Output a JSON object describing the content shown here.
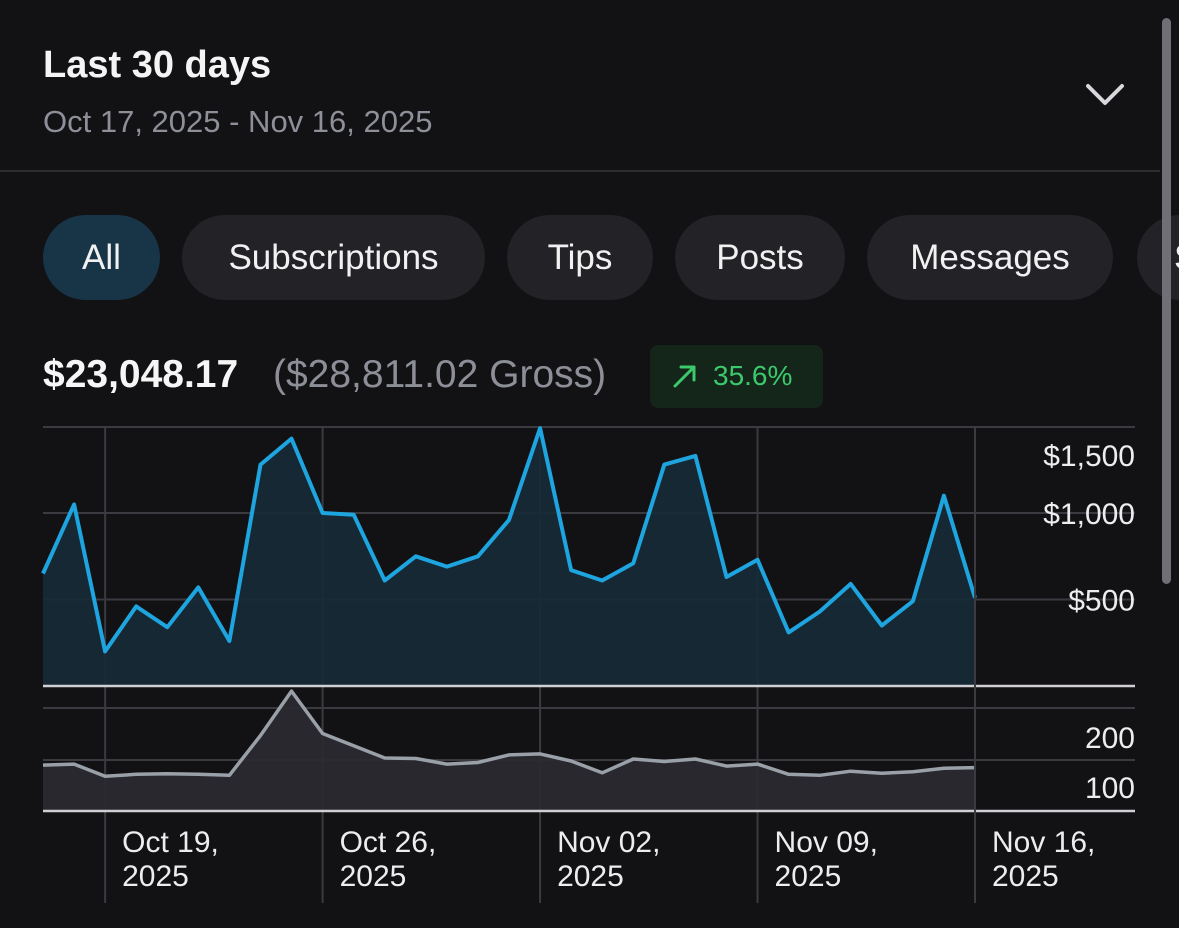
{
  "header": {
    "title": "Last 30 days",
    "date_range": "Oct 17, 2025 - Nov 16, 2025",
    "dropdown_icon": "chevron-down-icon"
  },
  "filters": {
    "tabs": [
      {
        "label": "All",
        "active": true
      },
      {
        "label": "Subscriptions",
        "active": false
      },
      {
        "label": "Tips",
        "active": false
      },
      {
        "label": "Posts",
        "active": false
      },
      {
        "label": "Messages",
        "active": false
      },
      {
        "label": "S",
        "active": false
      }
    ]
  },
  "summary": {
    "net_amount": "$23,048.17",
    "gross_text": "($28,811.02 Gross)",
    "change_icon": "arrow-up-right-icon",
    "change": "35.6%",
    "change_color": "#3cc96b"
  },
  "colors": {
    "background": "#121114",
    "accent_line": "#1ea4de",
    "active_tab": "#183447",
    "secondary_line": "#9aa0a8"
  },
  "chart_data": [
    {
      "type": "area",
      "series": [
        {
          "values": [
            650,
            1050,
            200,
            460,
            340,
            570,
            260,
            1280,
            1430,
            1000,
            990,
            610,
            750,
            690,
            750,
            960,
            1490,
            670,
            610,
            710,
            1280,
            1330,
            630,
            730,
            310,
            430,
            590,
            350,
            490,
            1100,
            510
          ]
        }
      ],
      "x": [
        "Oct 17",
        "Oct 18",
        "Oct 19",
        "Oct 20",
        "Oct 21",
        "Oct 22",
        "Oct 23",
        "Oct 24",
        "Oct 25",
        "Oct 26",
        "Oct 27",
        "Oct 28",
        "Oct 29",
        "Oct 30",
        "Oct 31",
        "Nov 01",
        "Nov 02",
        "Nov 03",
        "Nov 04",
        "Nov 05",
        "Nov 06",
        "Nov 07",
        "Nov 08",
        "Nov 09",
        "Nov 10",
        "Nov 11",
        "Nov 12",
        "Nov 13",
        "Nov 14",
        "Nov 15",
        "Nov 16"
      ],
      "y_ticks": [
        "$500",
        "$1,000",
        "$1,500"
      ],
      "ylim": [
        0,
        1500
      ],
      "grid": true,
      "y_axis_position": "right"
    },
    {
      "type": "area",
      "series": [
        {
          "values": [
            90,
            92,
            68,
            72,
            73,
            72,
            70,
            148,
            235,
            152,
            128,
            104,
            103,
            92,
            95,
            110,
            112,
            98,
            75,
            102,
            97,
            102,
            88,
            92,
            72,
            70,
            78,
            74,
            77,
            84,
            85
          ]
        }
      ],
      "x": [
        "Oct 17",
        "Oct 18",
        "Oct 19",
        "Oct 20",
        "Oct 21",
        "Oct 22",
        "Oct 23",
        "Oct 24",
        "Oct 25",
        "Oct 26",
        "Oct 27",
        "Oct 28",
        "Oct 29",
        "Oct 30",
        "Oct 31",
        "Nov 01",
        "Nov 02",
        "Nov 03",
        "Nov 04",
        "Nov 05",
        "Nov 06",
        "Nov 07",
        "Nov 08",
        "Nov 09",
        "Nov 10",
        "Nov 11",
        "Nov 12",
        "Nov 13",
        "Nov 14",
        "Nov 15",
        "Nov 16"
      ],
      "y_ticks": [
        "100",
        "200"
      ],
      "ylim": [
        0,
        200
      ],
      "grid": true,
      "y_axis_position": "right",
      "x_tick_labels": [
        [
          "Oct 19,",
          "2025"
        ],
        [
          "Oct 26,",
          "2025"
        ],
        [
          "Nov 02,",
          "2025"
        ],
        [
          "Nov 09,",
          "2025"
        ],
        [
          "Nov 16,",
          "2025"
        ]
      ]
    }
  ]
}
